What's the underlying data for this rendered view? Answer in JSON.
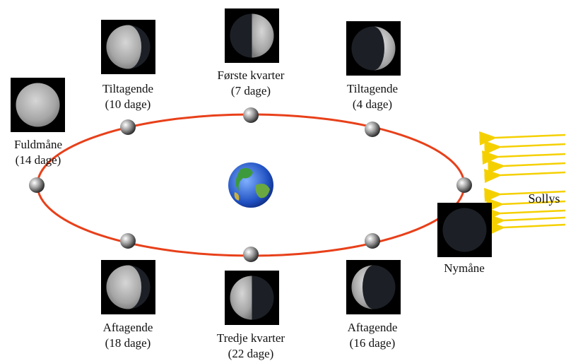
{
  "phases": [
    {
      "lines": [
        "Tiltagende",
        "(10 dage)"
      ]
    },
    {
      "lines": [
        "Første kvarter",
        "(7 dage)"
      ]
    },
    {
      "lines": [
        "Tiltagende",
        "(4 dage)"
      ]
    },
    {
      "lines": [
        "Nymåne"
      ]
    },
    {
      "lines": [
        "Aftagende",
        "(16 dage)"
      ]
    },
    {
      "lines": [
        "Tredje kvarter",
        "(22 dage)"
      ]
    },
    {
      "lines": [
        "Aftagende",
        "(18 dage)"
      ]
    },
    {
      "lines": [
        "Fuldmåne",
        "(14 dage)"
      ]
    }
  ],
  "sunlight": "Sollys"
}
